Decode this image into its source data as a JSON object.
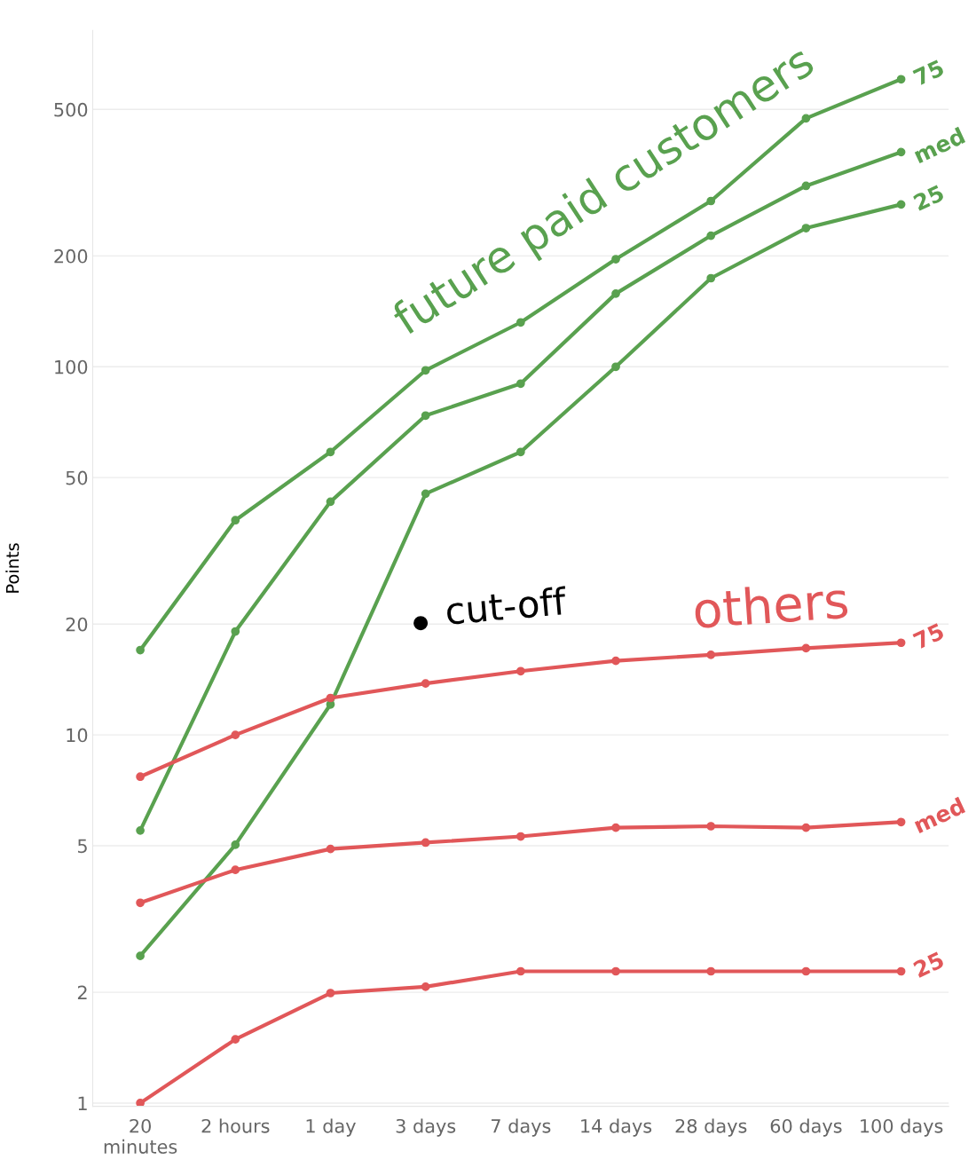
{
  "chart_data": {
    "type": "line",
    "ylabel": "Points",
    "categories": [
      "20\nminutes",
      "2 hours",
      "1 day",
      "3 days",
      "7 days",
      "14 days",
      "28 days",
      "60 days",
      "100 days"
    ],
    "series": [
      {
        "color": "#59a14f",
        "values": [
          17.0,
          38.3,
          58.7,
          97.8,
          132,
          196,
          282,
          473,
          604
        ]
      },
      {
        "color": "#59a14f",
        "values": [
          5.5,
          19.1,
          43,
          73.7,
          90,
          158,
          227,
          310,
          383
        ]
      },
      {
        "color": "#59a14f",
        "values": [
          2.51,
          5.03,
          12.1,
          45.2,
          58.7,
          100,
          174,
          238,
          276
        ]
      },
      {
        "color": "#e15759",
        "values": [
          7.7,
          10,
          12.6,
          13.8,
          14.9,
          15.9,
          16.5,
          17.2,
          17.8
        ]
      },
      {
        "color": "#e15759",
        "values": [
          3.5,
          4.3,
          4.9,
          5.1,
          5.3,
          5.6,
          5.65,
          5.6,
          5.8
        ]
      },
      {
        "color": "#e15759",
        "values": [
          1.0,
          1.49,
          1.99,
          2.07,
          2.28,
          2.28,
          2.28,
          2.28,
          2.28
        ]
      }
    ],
    "log": "y",
    "ylim": [
      0.98,
      820
    ],
    "yticks": [
      1,
      2,
      5,
      10,
      20,
      50,
      100,
      200,
      500
    ],
    "grid": "y",
    "marker": "circle",
    "line_style": "solid",
    "annotations": [
      {
        "text": "75",
        "x": "100 days",
        "y": 604
      },
      {
        "text": "med",
        "x": "100 days",
        "y": 383
      },
      {
        "text": "25",
        "x": "100 days",
        "y": 276
      },
      {
        "text": "75",
        "x": "100 days",
        "y": 17.8
      },
      {
        "text": "med",
        "x": "100 days",
        "y": 5.8
      },
      {
        "text": "25",
        "x": "100 days",
        "y": 2.28
      },
      "cut-off",
      "future paid customers",
      "others"
    ]
  }
}
